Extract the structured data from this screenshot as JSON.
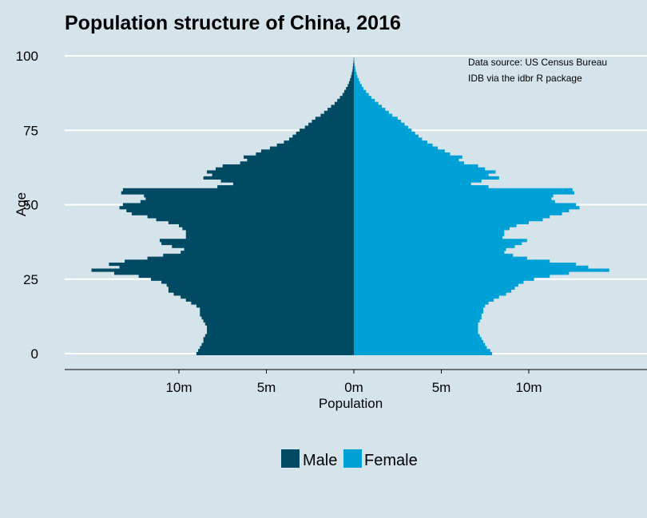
{
  "colors": {
    "background": "#d5e4eb",
    "male": "#004b63",
    "female": "#00a1d6",
    "grid": "#ffffff"
  },
  "chart_data": {
    "type": "bar",
    "orientation": "horizontal-pyramid",
    "title": "Population structure of China, 2016",
    "xlabel": "Population",
    "ylabel": "Age",
    "annotation": [
      "Data source: US Census Bureau",
      "IDB via the idbr R package"
    ],
    "x_ticks": [
      {
        "value": -10,
        "label": "10m"
      },
      {
        "value": -5,
        "label": "5m"
      },
      {
        "value": 0,
        "label": "0m"
      },
      {
        "value": 5,
        "label": "5m"
      },
      {
        "value": 10,
        "label": "10m"
      }
    ],
    "y_ticks": [
      0,
      25,
      50,
      75,
      100
    ],
    "xlim": [
      -16.5,
      16.5
    ],
    "ylim": [
      -5,
      101
    ],
    "units": "millions",
    "legend": {
      "position": "bottom",
      "entries": [
        "Male",
        "Female"
      ]
    },
    "ages": [
      0,
      1,
      2,
      3,
      4,
      5,
      6,
      7,
      8,
      9,
      10,
      11,
      12,
      13,
      14,
      15,
      16,
      17,
      18,
      19,
      20,
      21,
      22,
      23,
      24,
      25,
      26,
      27,
      28,
      29,
      30,
      31,
      32,
      33,
      34,
      35,
      36,
      37,
      38,
      39,
      40,
      41,
      42,
      43,
      44,
      45,
      46,
      47,
      48,
      49,
      50,
      51,
      52,
      53,
      54,
      55,
      56,
      57,
      58,
      59,
      60,
      61,
      62,
      63,
      64,
      65,
      66,
      67,
      68,
      69,
      70,
      71,
      72,
      73,
      74,
      75,
      76,
      77,
      78,
      79,
      80,
      81,
      82,
      83,
      84,
      85,
      86,
      87,
      88,
      89,
      90,
      91,
      92,
      93,
      94,
      95,
      96,
      97,
      98,
      99
    ],
    "series": [
      {
        "name": "Male",
        "values": [
          9.0,
          8.9,
          8.8,
          8.7,
          8.6,
          8.6,
          8.5,
          8.4,
          8.4,
          8.4,
          8.5,
          8.6,
          8.7,
          8.8,
          8.8,
          8.8,
          9.0,
          9.3,
          9.6,
          9.9,
          10.3,
          10.6,
          10.6,
          10.7,
          11.0,
          11.6,
          12.3,
          13.7,
          15.0,
          13.4,
          14.0,
          13.1,
          11.8,
          10.9,
          9.9,
          9.7,
          10.4,
          11.0,
          11.1,
          9.6,
          9.6,
          9.6,
          9.8,
          10.0,
          10.6,
          11.3,
          11.8,
          12.7,
          13.0,
          13.4,
          13.2,
          12.2,
          11.9,
          12.0,
          13.3,
          13.2,
          7.8,
          6.9,
          7.6,
          8.6,
          8.1,
          8.4,
          7.9,
          7.5,
          6.5,
          6.1,
          6.3,
          5.6,
          5.3,
          4.8,
          4.4,
          4.0,
          3.7,
          3.5,
          3.3,
          3.1,
          2.8,
          2.6,
          2.4,
          2.2,
          1.9,
          1.7,
          1.5,
          1.3,
          1.1,
          0.95,
          0.8,
          0.65,
          0.55,
          0.45,
          0.35,
          0.28,
          0.22,
          0.16,
          0.12,
          0.08,
          0.06,
          0.04,
          0.02,
          0.01
        ]
      },
      {
        "name": "Female",
        "values": [
          7.9,
          7.8,
          7.6,
          7.5,
          7.4,
          7.3,
          7.2,
          7.1,
          7.1,
          7.1,
          7.1,
          7.2,
          7.3,
          7.3,
          7.4,
          7.4,
          7.5,
          7.7,
          8.0,
          8.3,
          8.7,
          9.0,
          9.2,
          9.4,
          9.7,
          10.3,
          11.2,
          12.3,
          14.6,
          13.4,
          12.7,
          11.2,
          9.9,
          9.1,
          8.6,
          8.7,
          9.2,
          9.6,
          9.9,
          8.5,
          8.6,
          8.6,
          8.9,
          9.3,
          10.0,
          10.8,
          11.2,
          11.9,
          12.3,
          12.9,
          12.7,
          11.5,
          11.3,
          11.4,
          12.6,
          12.5,
          7.7,
          6.7,
          7.3,
          8.3,
          7.7,
          8.1,
          7.5,
          7.1,
          6.3,
          6.0,
          6.2,
          5.5,
          5.2,
          4.8,
          4.5,
          4.2,
          3.9,
          3.7,
          3.5,
          3.3,
          3.1,
          2.9,
          2.7,
          2.5,
          2.2,
          2.0,
          1.8,
          1.6,
          1.4,
          1.2,
          1.0,
          0.85,
          0.7,
          0.55,
          0.45,
          0.35,
          0.28,
          0.2,
          0.15,
          0.11,
          0.08,
          0.05,
          0.03,
          0.02
        ]
      }
    ]
  }
}
